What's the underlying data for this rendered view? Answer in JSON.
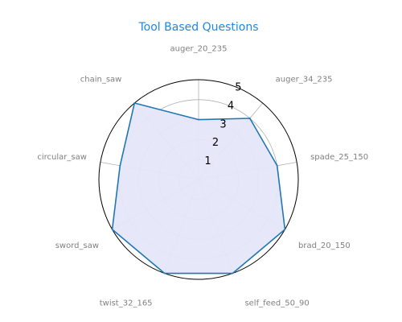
{
  "chart_data": {
    "type": "radar",
    "title": "Tool Based Questions",
    "categories": [
      "auger_20_235",
      "auger_34_235",
      "spade_25_150",
      "brad_20_150",
      "self_feed_50_90",
      "twist_32_165",
      "sword_saw",
      "circular_saw",
      "chain_saw"
    ],
    "series": [
      {
        "values": [
          3.0,
          4.0,
          4.0,
          5.0,
          5.0,
          5.0,
          5.0,
          4.0,
          5.0
        ]
      }
    ],
    "rlim": [
      0,
      5
    ],
    "rticks": [
      "1",
      "2",
      "3",
      "4",
      "5"
    ],
    "grid": true,
    "legend": "none",
    "colors": {
      "title": "#1e88e5",
      "line": "#1f77b4",
      "fill": "#e6e6fa",
      "grid": "#b0b0b0",
      "outer_ring": "#000000",
      "category_label": "#808080"
    }
  }
}
